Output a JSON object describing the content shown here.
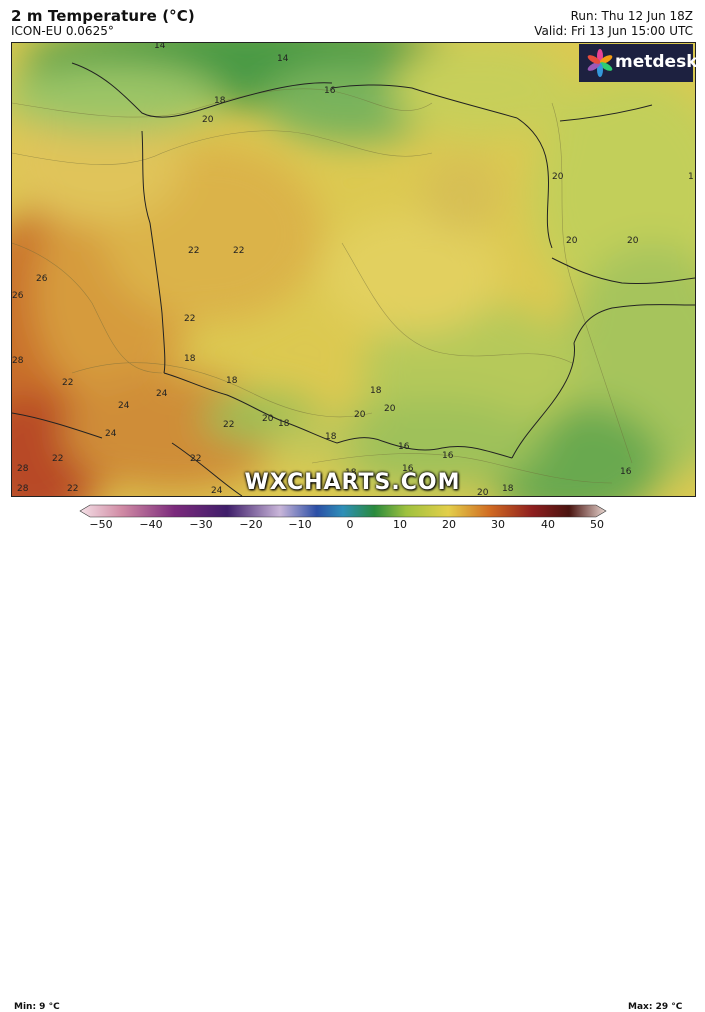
{
  "header": {
    "title": "2 m Temperature (°C)",
    "model": "ICON-EU 0.0625°",
    "run": "Run: Thu 12 Jun 18Z",
    "valid": "Valid: Fri 13 Jun 15:00 UTC"
  },
  "logo": {
    "text": "metdesk",
    "icon": "metdesk-flower-icon"
  },
  "watermark": "WXCHARTS.COM",
  "legend": {
    "min": "Min: 9 °C",
    "max": "Max: 29 °C",
    "ticks": [
      "−50",
      "−40",
      "−30",
      "−20",
      "−10",
      "0",
      "10",
      "20",
      "30",
      "40",
      "50"
    ]
  },
  "contour_labels": {
    "l14a": "14",
    "l14b": "14",
    "l16a": "16",
    "l18a": "18",
    "l20a": "20",
    "l20b": "20",
    "l20c": "20",
    "l20d": "20",
    "l22a": "22",
    "l22b": "22",
    "l22c": "22",
    "l22d": "22",
    "l22e": "22",
    "l22f": "22",
    "l24a": "24",
    "l24b": "24",
    "l24c": "24",
    "l24d": "24",
    "l26a": "26",
    "l26b": "26",
    "l28a": "28",
    "l28b": "28",
    "l28c": "28",
    "l18b": "18",
    "l18c": "18",
    "l18d": "18",
    "l18e": "18",
    "l20e": "20",
    "l20f": "20",
    "l20g": "20",
    "l16b": "16",
    "l16c": "16",
    "l16d": "16",
    "l18f": "18",
    "l18g": "18",
    "l20h": "20",
    "l22g": "22",
    "l22h": "22",
    "l18h": "18",
    "l16e": "16",
    "l1": "1"
  }
}
